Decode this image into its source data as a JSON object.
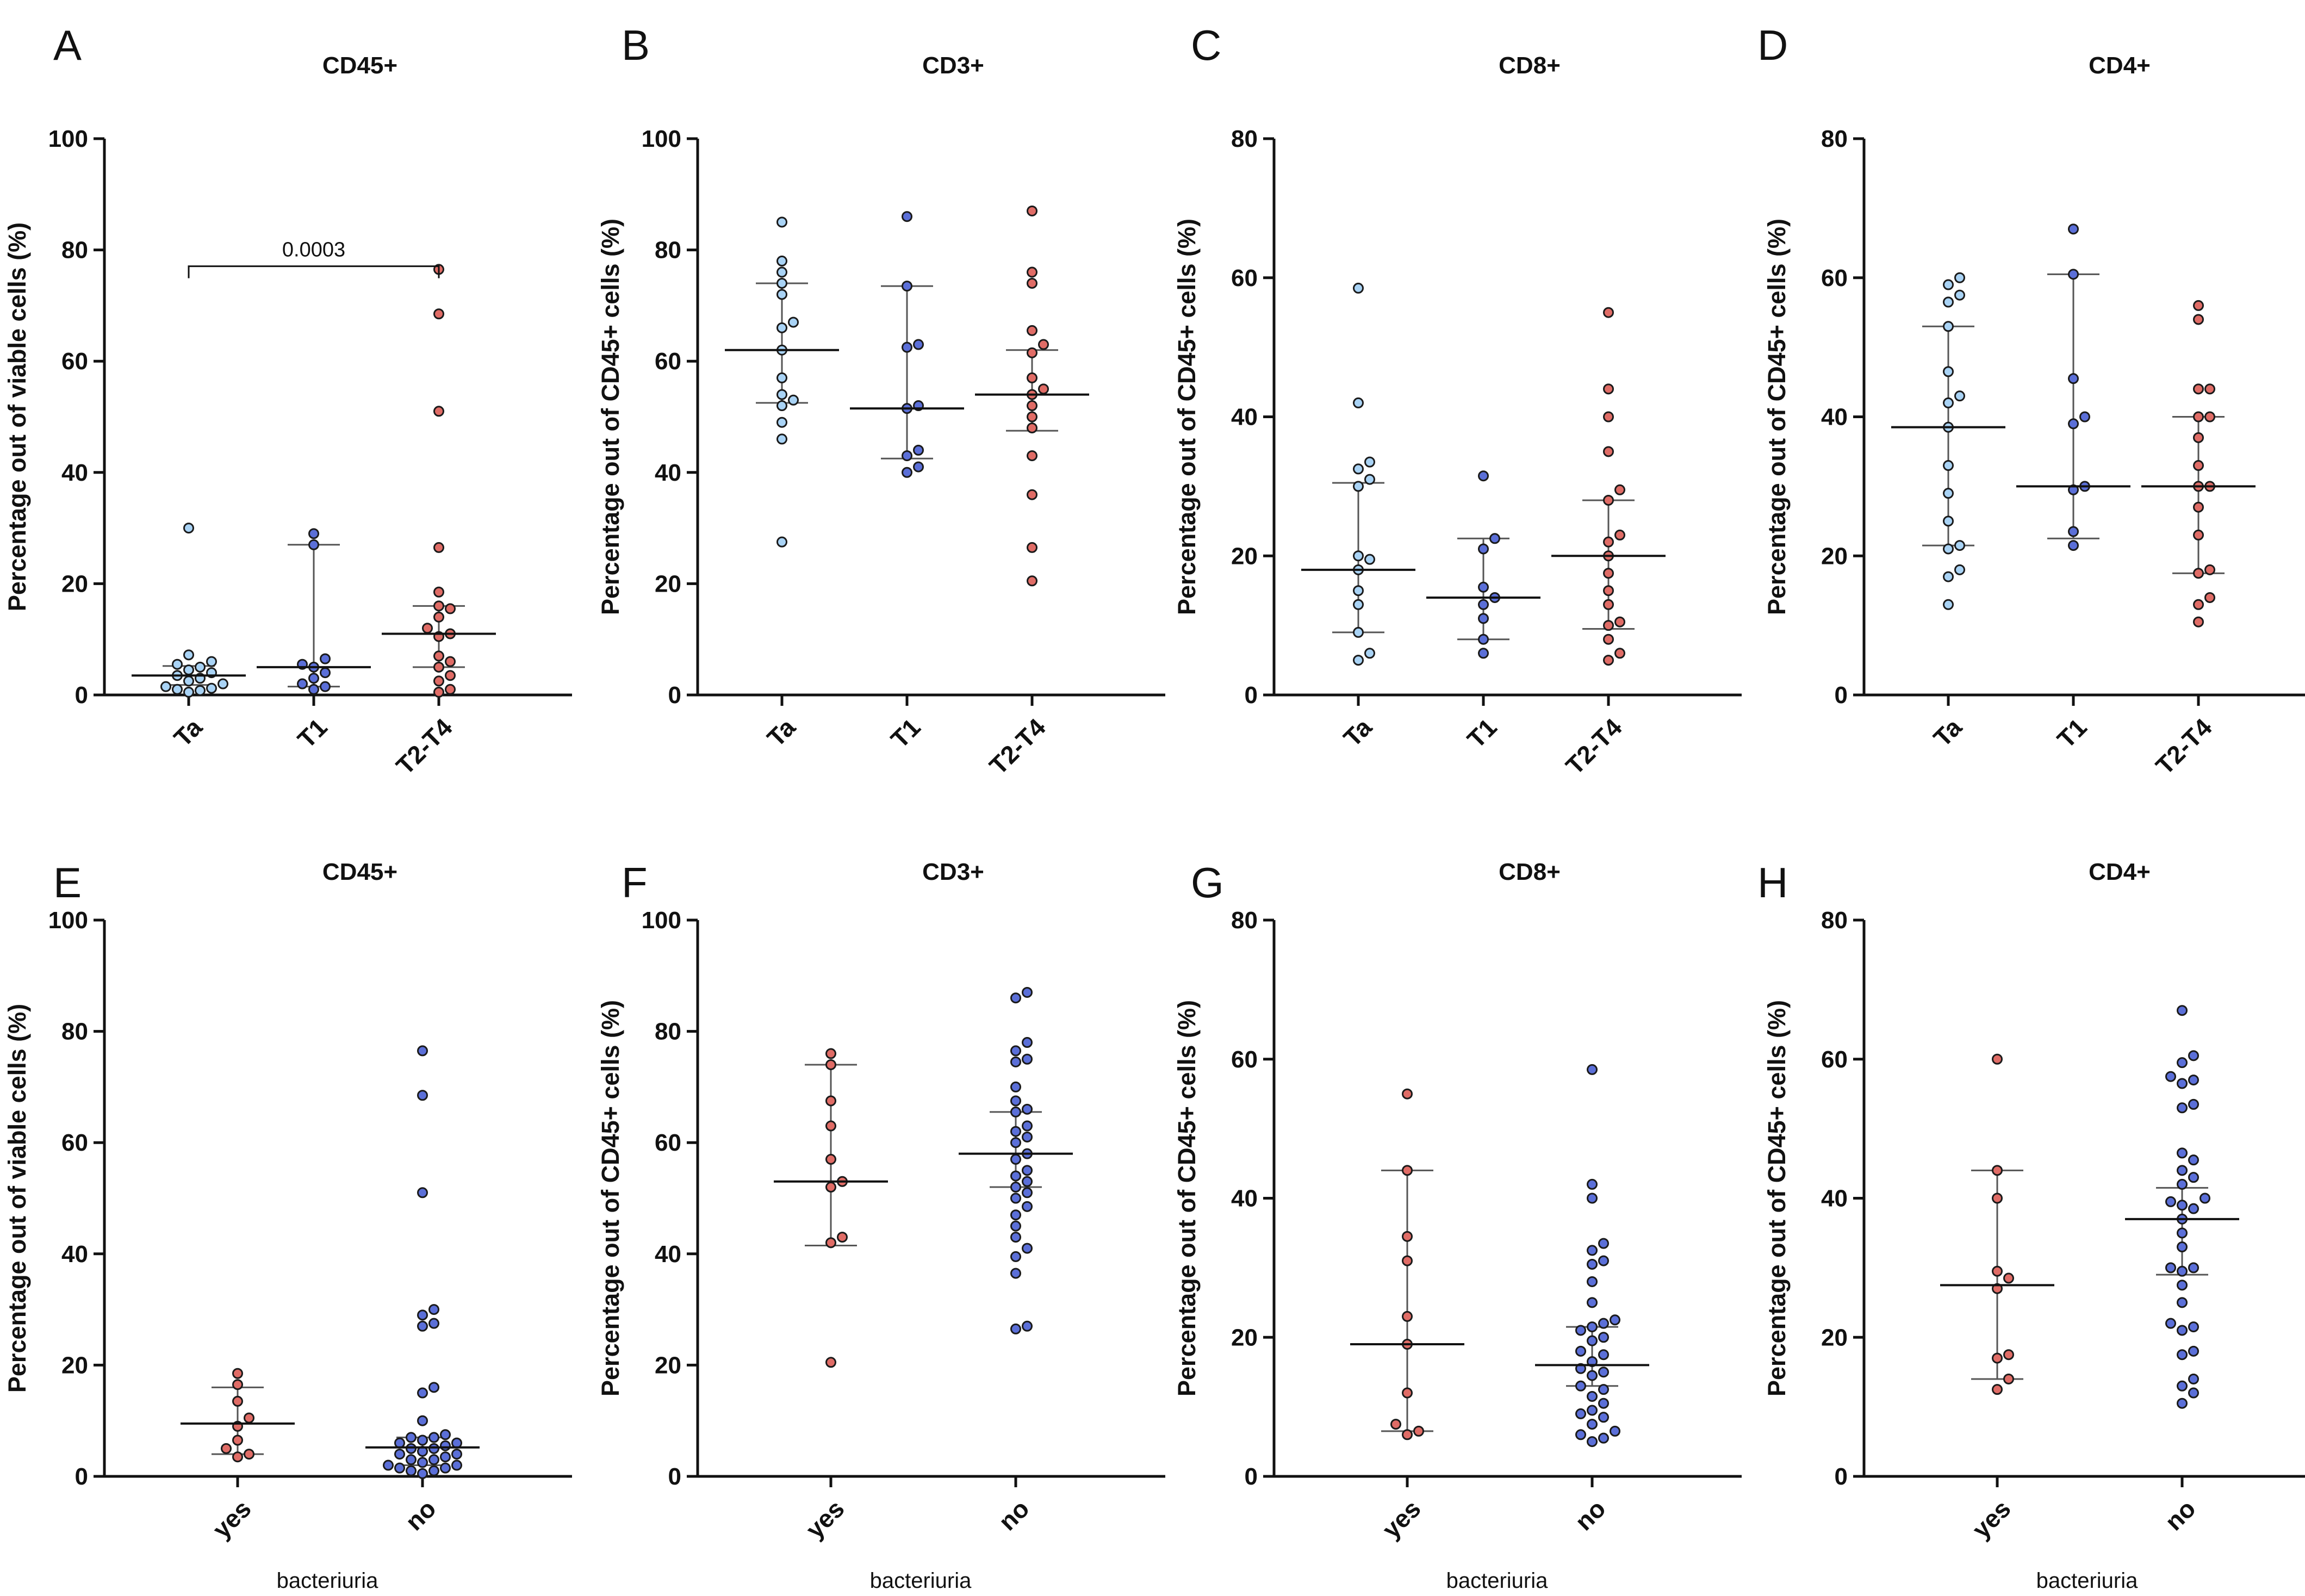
{
  "colors": {
    "Ta": "#a9d3f5",
    "T1": "#5b6fd8",
    "T2-T4": "#e06c66",
    "yes": "#e06c66",
    "no": "#5b6fd8",
    "stroke": "#1a1a1a",
    "errorbar": "#555555"
  },
  "chart_data": [
    {
      "panel": "A",
      "title": "CD45+",
      "type": "scatter",
      "ylabel": "Percentage out of viable cells (%)",
      "ylim": [
        0,
        100
      ],
      "yticks": [
        0,
        20,
        40,
        60,
        80,
        100
      ],
      "xlabel": "",
      "categories": [
        "Ta",
        "T1",
        "T2-T4"
      ],
      "series": [
        {
          "name": "Ta",
          "values": [
            30,
            7.2,
            6,
            5,
            4,
            3.5,
            3,
            2.5,
            2,
            1.5,
            1.2,
            1,
            0.8,
            0.5,
            5.5,
            4.5
          ],
          "median": 3.5,
          "q1": 1.8,
          "q3": 5.2
        },
        {
          "name": "T1",
          "values": [
            29,
            27,
            6.5,
            5.5,
            5,
            4,
            3,
            2,
            1.5,
            1
          ],
          "median": 5,
          "q1": 1.5,
          "q3": 27
        },
        {
          "name": "T2-T4",
          "values": [
            76.5,
            68.5,
            51,
            26.5,
            18.5,
            16,
            15.5,
            14,
            12,
            11,
            10.5,
            7,
            6,
            5,
            3.5,
            2.5,
            1,
            0.5
          ],
          "median": 11,
          "q1": 5,
          "q3": 16
        }
      ],
      "annotation": {
        "text": "0.0003",
        "from": "Ta",
        "to": "T2-T4",
        "y": 80
      }
    },
    {
      "panel": "B",
      "title": "CD3+",
      "type": "scatter",
      "ylabel": "Percentage out of CD45+ cells (%)",
      "ylim": [
        0,
        100
      ],
      "yticks": [
        0,
        20,
        40,
        60,
        80,
        100
      ],
      "xlabel": "",
      "categories": [
        "Ta",
        "T1",
        "T2-T4"
      ],
      "series": [
        {
          "name": "Ta",
          "values": [
            85,
            78,
            76,
            74,
            72,
            67,
            66,
            62,
            57,
            54,
            53,
            52,
            49,
            46,
            27.5
          ],
          "median": 62,
          "q1": 52.5,
          "q3": 74
        },
        {
          "name": "T1",
          "values": [
            86,
            73.5,
            63,
            62.5,
            52,
            51.5,
            44,
            43,
            41,
            40
          ],
          "median": 51.5,
          "q1": 42.5,
          "q3": 73.5
        },
        {
          "name": "T2-T4",
          "values": [
            87,
            76,
            74,
            65.5,
            63,
            61.5,
            57,
            55,
            54,
            52,
            50,
            48,
            43,
            36,
            26.5,
            20.5
          ],
          "median": 54,
          "q1": 47.5,
          "q3": 62
        }
      ]
    },
    {
      "panel": "C",
      "title": "CD8+",
      "type": "scatter",
      "ylabel": "Percentage out of CD45+ cells (%)",
      "ylim": [
        0,
        80
      ],
      "yticks": [
        0,
        20,
        40,
        60,
        80
      ],
      "xlabel": "",
      "categories": [
        "Ta",
        "T1",
        "T2-T4"
      ],
      "series": [
        {
          "name": "Ta",
          "values": [
            58.5,
            42,
            33.5,
            32.5,
            31,
            30,
            20,
            19.5,
            18,
            15,
            13,
            9,
            6,
            5
          ],
          "median": 18,
          "q1": 9,
          "q3": 30.5
        },
        {
          "name": "T1",
          "values": [
            31.5,
            22.5,
            21,
            15.5,
            14,
            13,
            11,
            8,
            6
          ],
          "median": 14,
          "q1": 8,
          "q3": 22.5
        },
        {
          "name": "T2-T4",
          "values": [
            55,
            44,
            40,
            35,
            29.5,
            28,
            23,
            22,
            20,
            17.5,
            15,
            13,
            10.5,
            10,
            8,
            6,
            5
          ],
          "median": 20,
          "q1": 9.5,
          "q3": 28
        }
      ]
    },
    {
      "panel": "D",
      "title": "CD4+",
      "type": "scatter",
      "ylabel": "Percentage out of CD45+ cells (%)",
      "ylim": [
        0,
        80
      ],
      "yticks": [
        0,
        20,
        40,
        60,
        80
      ],
      "xlabel": "",
      "categories": [
        "Ta",
        "T1",
        "T2-T4"
      ],
      "series": [
        {
          "name": "Ta",
          "values": [
            60,
            59,
            57.5,
            56.5,
            53,
            46.5,
            43,
            42,
            38.5,
            33,
            29,
            25,
            21.5,
            21,
            18,
            17,
            13
          ],
          "median": 38.5,
          "q1": 21.5,
          "q3": 53
        },
        {
          "name": "T1",
          "values": [
            67,
            60.5,
            45.5,
            40,
            39,
            30,
            29.5,
            23.5,
            21.5
          ],
          "median": 30,
          "q1": 22.5,
          "q3": 60.5
        },
        {
          "name": "T2-T4",
          "values": [
            56,
            54,
            44,
            44,
            40,
            40,
            37,
            33,
            30,
            30,
            27,
            23,
            18,
            17.5,
            14,
            13,
            10.5
          ],
          "median": 30,
          "q1": 17.5,
          "q3": 40
        }
      ]
    },
    {
      "panel": "E",
      "title": "CD45+",
      "type": "scatter",
      "ylabel": "Percentage out of viable cells (%)",
      "ylim": [
        0,
        100
      ],
      "yticks": [
        0,
        20,
        40,
        60,
        80,
        100
      ],
      "xlabel": "bacteriuria",
      "categories": [
        "yes",
        "no"
      ],
      "series": [
        {
          "name": "yes",
          "values": [
            18.5,
            16.5,
            13.5,
            10.5,
            9,
            6.5,
            5,
            4,
            3.5
          ],
          "median": 9.5,
          "q1": 4,
          "q3": 16
        },
        {
          "name": "no",
          "values": [
            76.5,
            68.5,
            51,
            30,
            29,
            27.5,
            27,
            16,
            15,
            10,
            7.5,
            7,
            7,
            6.5,
            6,
            6,
            5.5,
            5,
            5,
            4.5,
            4,
            4,
            3.5,
            3,
            3,
            2.5,
            2,
            2,
            1.5,
            1.5,
            1,
            1,
            0.5
          ],
          "median": 5.2,
          "q1": 2,
          "q3": 7
        },
        {
          "name": "no",
          "values": [],
          "median": null,
          "q1": null,
          "q3": null
        }
      ]
    },
    {
      "panel": "F",
      "title": "CD3+",
      "type": "scatter",
      "ylabel": "Percentage out of CD45+ cells (%)",
      "ylim": [
        0,
        100
      ],
      "yticks": [
        0,
        20,
        40,
        60,
        80,
        100
      ],
      "xlabel": "bacteriuria",
      "categories": [
        "yes",
        "no"
      ],
      "series": [
        {
          "name": "yes",
          "values": [
            76,
            74,
            67.5,
            63,
            57,
            53,
            52,
            43,
            42,
            20.5
          ],
          "median": 53,
          "q1": 41.5,
          "q3": 74
        },
        {
          "name": "no",
          "values": [
            87,
            86,
            78,
            76.5,
            75,
            74.5,
            70,
            67.5,
            66,
            65.5,
            63,
            62,
            61,
            60,
            58,
            57,
            55,
            54,
            53,
            52,
            51,
            50,
            48.5,
            47,
            45,
            43,
            41,
            39.5,
            36.5,
            27,
            26.5
          ],
          "median": 58,
          "q1": 52,
          "q3": 65.5
        }
      ]
    },
    {
      "panel": "G",
      "title": "CD8+",
      "type": "scatter",
      "ylabel": "Percentage out of CD45+ cells (%)",
      "ylim": [
        0,
        80
      ],
      "yticks": [
        0,
        20,
        40,
        60,
        80
      ],
      "xlabel": "bacteriuria",
      "categories": [
        "yes",
        "no"
      ],
      "series": [
        {
          "name": "yes",
          "values": [
            55,
            44,
            34.5,
            31,
            23,
            19,
            12,
            7.5,
            6.5,
            6
          ],
          "median": 19,
          "q1": 6.5,
          "q3": 44
        },
        {
          "name": "no",
          "values": [
            58.5,
            42,
            40,
            33.5,
            32.5,
            31,
            30.5,
            28,
            25,
            22.5,
            22,
            21.5,
            21,
            20,
            19.5,
            18,
            17.5,
            16.5,
            15.5,
            15,
            14.5,
            13,
            12.5,
            11.5,
            10.5,
            9.5,
            9,
            8.5,
            7.5,
            6.5,
            6,
            5.5,
            5
          ],
          "median": 16,
          "q1": 13,
          "q3": 21.5
        }
      ]
    },
    {
      "panel": "H",
      "title": "CD4+",
      "type": "scatter",
      "ylabel": "Percentage out of CD45+ cells (%)",
      "ylim": [
        0,
        80
      ],
      "yticks": [
        0,
        20,
        40,
        60,
        80
      ],
      "xlabel": "bacteriuria",
      "categories": [
        "yes",
        "no"
      ],
      "series": [
        {
          "name": "yes",
          "values": [
            60,
            44,
            40,
            29.5,
            28.5,
            27,
            17.5,
            17,
            14,
            12.5
          ],
          "median": 27.5,
          "q1": 14,
          "q3": 44
        },
        {
          "name": "no",
          "values": [
            67,
            60.5,
            59.5,
            57.5,
            57,
            56.5,
            53.5,
            53,
            46.5,
            45.5,
            44,
            43,
            42,
            40,
            39.5,
            39,
            38.5,
            37,
            35,
            33,
            30,
            30,
            29.5,
            27.5,
            25,
            22,
            21.5,
            21,
            18,
            17.5,
            14,
            13,
            12,
            10.5
          ],
          "median": 37,
          "q1": 29,
          "q3": 41.5
        }
      ]
    }
  ]
}
